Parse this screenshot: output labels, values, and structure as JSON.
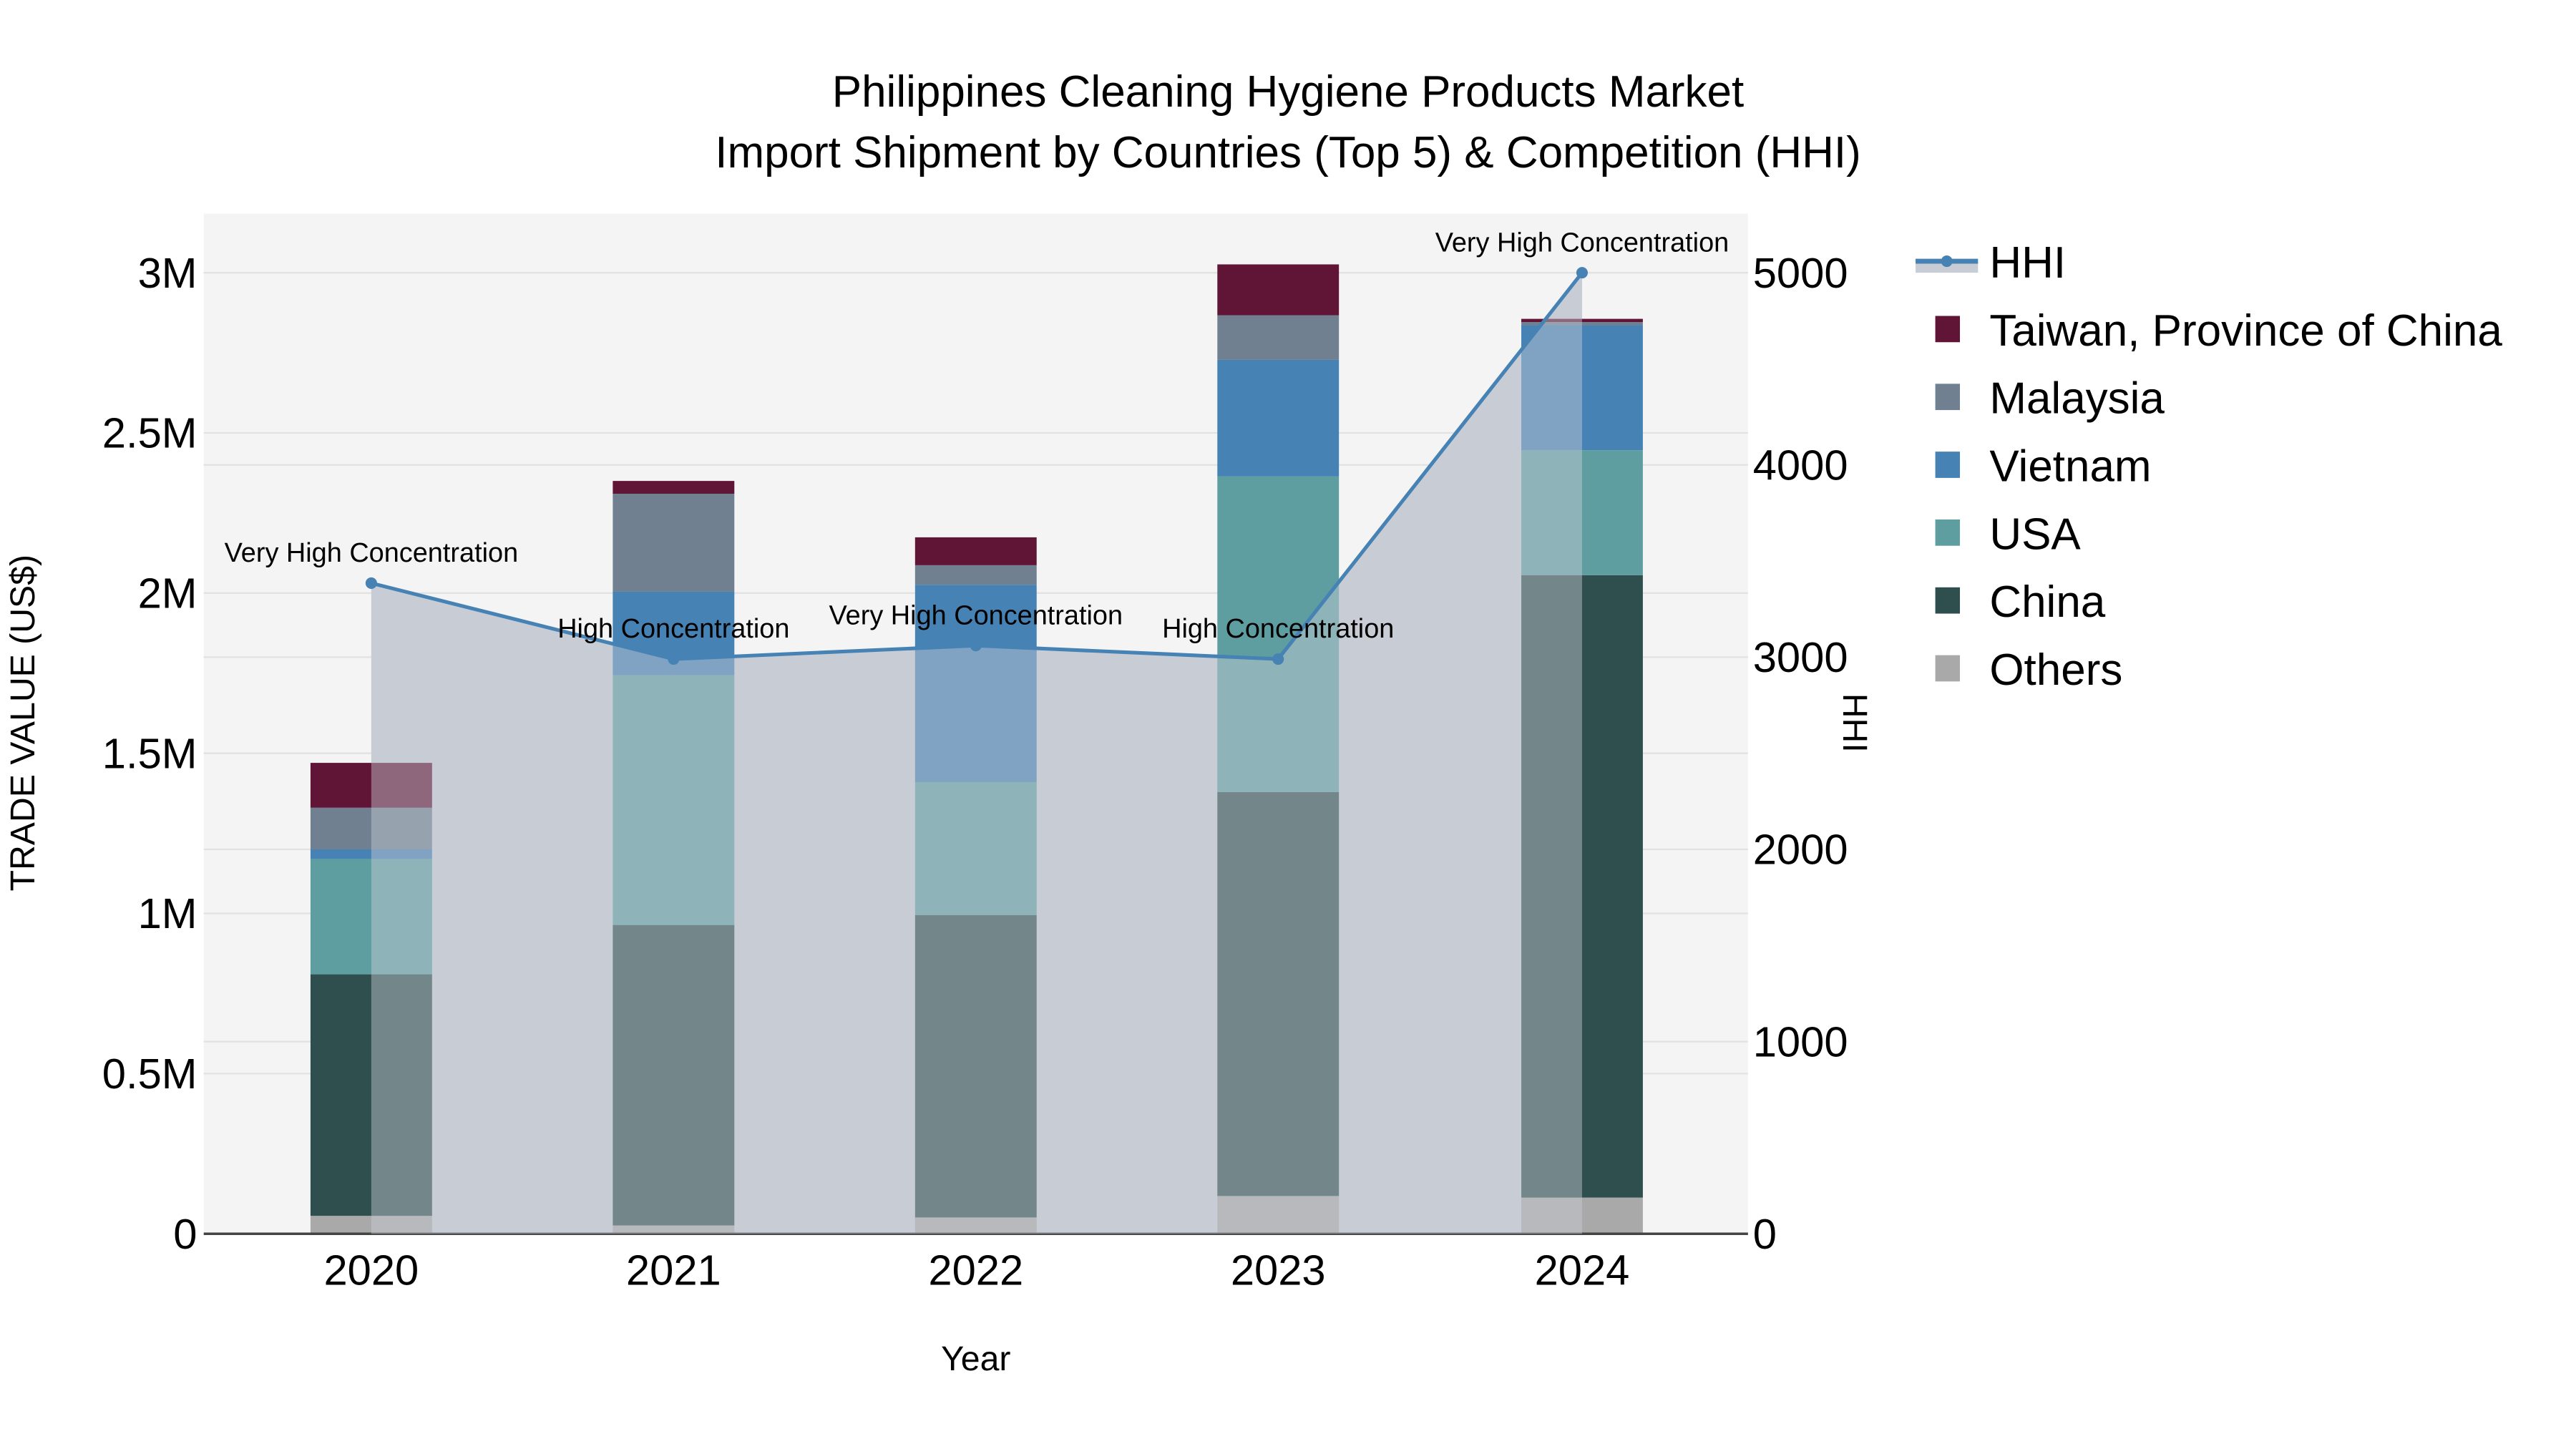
{
  "chart_data": {
    "type": "bar",
    "title": "Philippines Cleaning Hygiene Products Market",
    "subtitle": "Import Shipment by Countries (Top 5) & Competition (HHI)",
    "xlabel": "Year",
    "ylabel": "TRADE VALUE (US$)",
    "y2label": "HHI",
    "categories": [
      "2020",
      "2021",
      "2022",
      "2023",
      "2024"
    ],
    "ylim": [
      0,
      3200000
    ],
    "y2lim": [
      0,
      5300
    ],
    "yticks": [
      "0",
      "0.5M",
      "1M",
      "1.5M",
      "2M",
      "2.5M",
      "3M"
    ],
    "ytick_values": [
      0,
      500000,
      1000000,
      1500000,
      2000000,
      2500000,
      3000000
    ],
    "y2ticks": [
      "0",
      "1000",
      "2000",
      "3000",
      "4000",
      "5000"
    ],
    "y2tick_values": [
      0,
      1000,
      2000,
      3000,
      4000,
      5000
    ],
    "stacked": true,
    "grid": true,
    "legend_position": "right",
    "series": [
      {
        "name": "Others",
        "color": "#A9A9A9",
        "values": [
          56000,
          26000,
          51000,
          118000,
          113000
        ]
      },
      {
        "name": "China",
        "color": "#2F4F4F",
        "values": [
          754000,
          938000,
          944000,
          1261000,
          1943000
        ]
      },
      {
        "name": "USA",
        "color": "#5F9EA0",
        "values": [
          360000,
          780000,
          415000,
          985000,
          390000
        ]
      },
      {
        "name": "Vietnam",
        "color": "#4682B4",
        "values": [
          30000,
          261000,
          616000,
          364000,
          390000
        ]
      },
      {
        "name": "Malaysia",
        "color": "#708090",
        "values": [
          130000,
          305000,
          61000,
          139000,
          10000
        ]
      },
      {
        "name": "Taiwan, Province of China",
        "color": "#601436",
        "values": [
          140000,
          40000,
          87000,
          159000,
          10000
        ]
      }
    ],
    "line_series": {
      "name": "HHI",
      "color": "#4682B4",
      "fill_color": "#C8CDD5",
      "values": [
        3385,
        2990,
        3060,
        2990,
        5000
      ],
      "annotations": [
        "Very High Concentration",
        "High Concentration",
        "Very High Concentration",
        "High Concentration",
        "Very High Concentration"
      ]
    }
  },
  "legend": {
    "items": [
      "HHI",
      "Taiwan, Province of China",
      "Malaysia",
      "Vietnam",
      "USA",
      "China",
      "Others"
    ]
  }
}
